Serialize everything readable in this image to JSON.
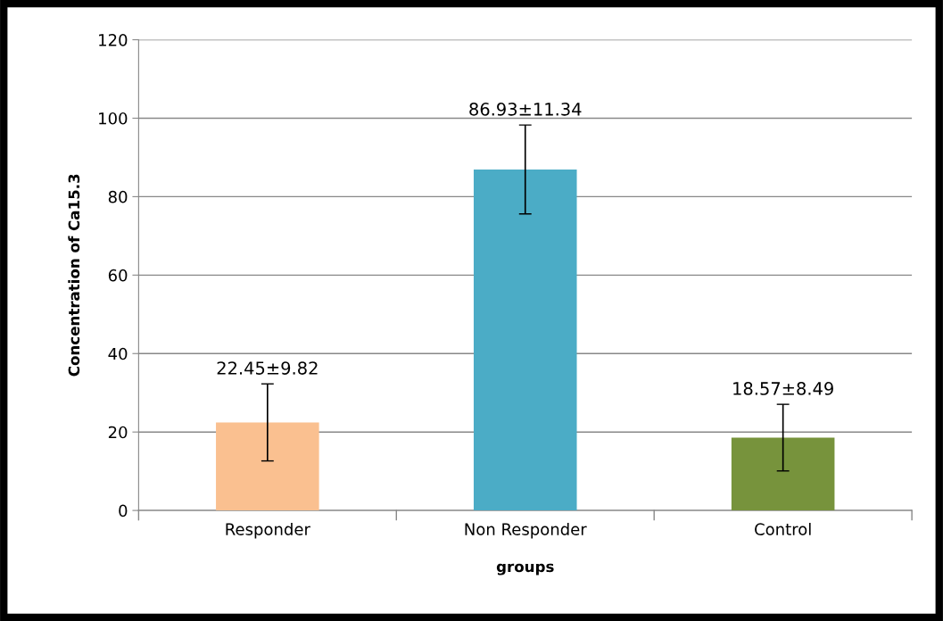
{
  "chart_data": {
    "type": "bar",
    "xlabel": "groups",
    "ylabel": "Concentration of Ca15.3",
    "categories": [
      "Responder",
      "Non Responder",
      "Control"
    ],
    "values": [
      22.45,
      86.93,
      18.57
    ],
    "errors": [
      9.82,
      11.34,
      8.49
    ],
    "colors": [
      "#fac090",
      "#4bacc6",
      "#77933c"
    ],
    "value_labels": [
      "22.45±9.82",
      "86.93±11.34",
      "18.57±8.49"
    ],
    "ylim": [
      0,
      120
    ],
    "yticks": [
      0,
      20,
      40,
      60,
      80,
      100,
      120
    ],
    "grid": "y",
    "legend": false
  }
}
